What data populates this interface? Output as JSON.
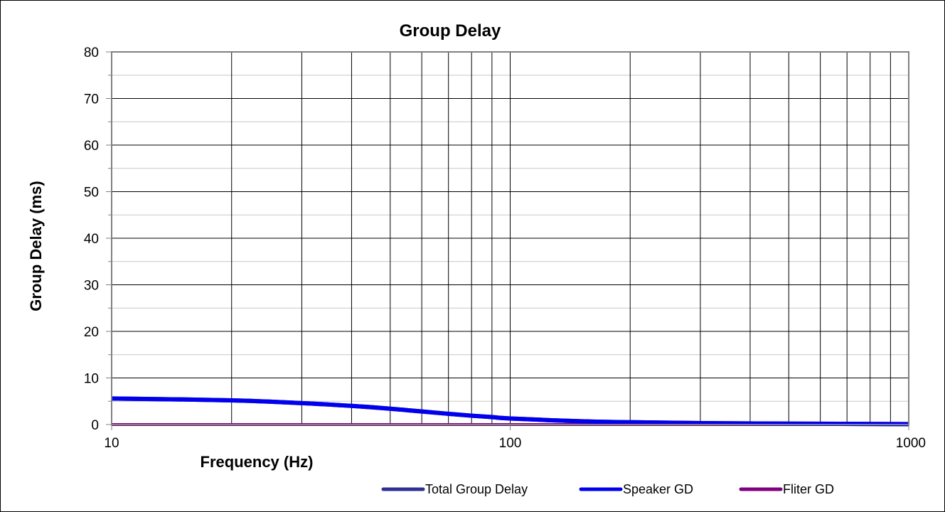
{
  "chart_data": {
    "type": "line",
    "title": "Group Delay",
    "xlabel": "Frequency (Hz)",
    "ylabel": "Group Delay (ms)",
    "xscale": "log",
    "xlim": [
      10,
      1000
    ],
    "ylim": [
      0,
      80
    ],
    "x_ticks": [
      "10",
      "100",
      "1000"
    ],
    "y_ticks": [
      "0",
      "10",
      "20",
      "30",
      "40",
      "50",
      "60",
      "70",
      "80"
    ],
    "grid": true,
    "legend_position": "bottom",
    "series": [
      {
        "name": "Total Group Delay",
        "color": "#2e3192",
        "x": [
          10,
          20,
          30,
          40,
          50,
          60,
          70,
          80,
          90,
          100,
          150,
          200,
          300,
          500,
          1000
        ],
        "y": [
          5.6,
          5.2,
          4.6,
          4.0,
          3.4,
          2.8,
          2.3,
          1.9,
          1.6,
          1.3,
          0.7,
          0.5,
          0.3,
          0.2,
          0.1
        ]
      },
      {
        "name": "Speaker GD",
        "color": "#0000ee",
        "x": [
          10,
          20,
          30,
          40,
          50,
          60,
          70,
          80,
          90,
          100,
          150,
          200,
          300,
          500,
          1000
        ],
        "y": [
          5.6,
          5.2,
          4.6,
          4.0,
          3.4,
          2.8,
          2.3,
          1.9,
          1.6,
          1.3,
          0.7,
          0.5,
          0.3,
          0.2,
          0.1
        ]
      },
      {
        "name": "Fliter GD",
        "color": "#800080",
        "x": [
          10,
          1000
        ],
        "y": [
          0,
          0
        ]
      }
    ]
  }
}
